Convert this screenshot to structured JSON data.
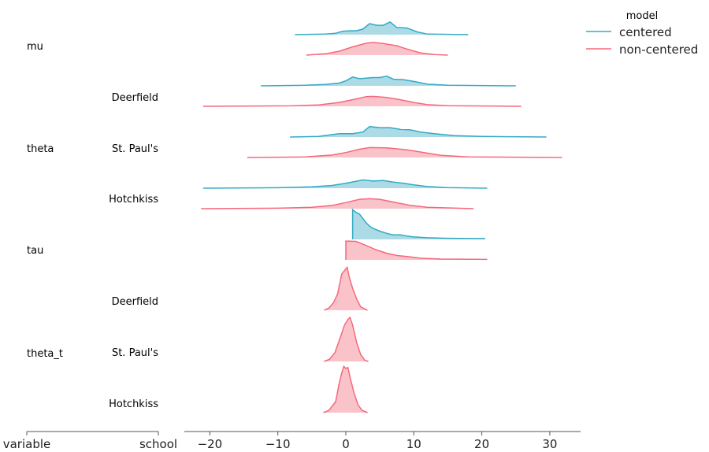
{
  "chart_data": {
    "type": "ridge",
    "xlim": [
      -24,
      34.5
    ],
    "xticks": [
      -20,
      -10,
      0,
      10,
      20,
      30
    ],
    "xtick_labels": [
      "−20",
      "−10",
      "0",
      "10",
      "20",
      "30"
    ],
    "left_axis_labels": {
      "variable": "variable",
      "school": "school"
    },
    "legend": {
      "title": "model",
      "placement": "top-right",
      "entries": [
        "centered",
        "non-centered"
      ]
    },
    "colors": {
      "centered": "#33aac4",
      "centered_fill": "#acdbe6",
      "non-centered": "#f6687c",
      "non-centered_fill": "#fac3ca"
    },
    "rows": [
      {
        "variable": "mu",
        "school": "",
        "curves": [
          {
            "model": "centered",
            "points": [
              [
                -7.5,
                0
              ],
              [
                -3,
                0.005
              ],
              [
                -1.5,
                0.012
              ],
              [
                -0.5,
                0.03
              ],
              [
                0.5,
                0.035
              ],
              [
                1.5,
                0.035
              ],
              [
                2.5,
                0.05
              ],
              [
                3.5,
                0.1
              ],
              [
                4.5,
                0.085
              ],
              [
                5.5,
                0.085
              ],
              [
                6.5,
                0.115
              ],
              [
                7.5,
                0.065
              ],
              [
                9,
                0.06
              ],
              [
                10.5,
                0.025
              ],
              [
                12,
                0.005
              ],
              [
                18,
                0
              ]
            ]
          },
          {
            "model": "non-centered",
            "points": [
              [
                -5.8,
                0
              ],
              [
                -3,
                0.012
              ],
              [
                -1,
                0.035
              ],
              [
                1,
                0.075
              ],
              [
                3,
                0.108
              ],
              [
                4,
                0.115
              ],
              [
                5.5,
                0.105
              ],
              [
                7.5,
                0.085
              ],
              [
                9,
                0.055
              ],
              [
                11,
                0.02
              ],
              [
                13,
                0.006
              ],
              [
                15,
                0
              ]
            ]
          }
        ]
      },
      {
        "variable": "theta",
        "school": "Deerfield",
        "curves": [
          {
            "model": "centered",
            "points": [
              [
                -12.5,
                0
              ],
              [
                -6,
                0.005
              ],
              [
                -3,
                0.012
              ],
              [
                -1,
                0.025
              ],
              [
                0,
                0.045
              ],
              [
                1,
                0.08
              ],
              [
                2,
                0.065
              ],
              [
                3,
                0.07
              ],
              [
                4,
                0.075
              ],
              [
                5,
                0.075
              ],
              [
                6,
                0.088
              ],
              [
                7,
                0.06
              ],
              [
                8.5,
                0.055
              ],
              [
                10,
                0.04
              ],
              [
                12,
                0.015
              ],
              [
                15,
                0.006
              ],
              [
                25,
                0
              ]
            ]
          },
          {
            "model": "non-centered",
            "points": [
              [
                -21,
                0
              ],
              [
                -8,
                0.004
              ],
              [
                -4,
                0.012
              ],
              [
                -1,
                0.035
              ],
              [
                1,
                0.06
              ],
              [
                3,
                0.088
              ],
              [
                4,
                0.09
              ],
              [
                6,
                0.08
              ],
              [
                8,
                0.06
              ],
              [
                10,
                0.035
              ],
              [
                12,
                0.015
              ],
              [
                15,
                0.005
              ],
              [
                25.8,
                0
              ]
            ]
          }
        ]
      },
      {
        "variable": "theta",
        "school": "St. Paul's",
        "curves": [
          {
            "model": "centered",
            "points": [
              [
                -8.2,
                0
              ],
              [
                -4,
                0.006
              ],
              [
                -1,
                0.03
              ],
              [
                1,
                0.03
              ],
              [
                2.5,
                0.045
              ],
              [
                3.5,
                0.095
              ],
              [
                5,
                0.085
              ],
              [
                6.5,
                0.085
              ],
              [
                8,
                0.07
              ],
              [
                9.5,
                0.065
              ],
              [
                11,
                0.045
              ],
              [
                13,
                0.03
              ],
              [
                16,
                0.012
              ],
              [
                20,
                0.005
              ],
              [
                29.5,
                0
              ]
            ]
          },
          {
            "model": "non-centered",
            "points": [
              [
                -14.5,
                0
              ],
              [
                -6,
                0.005
              ],
              [
                -2,
                0.022
              ],
              [
                0,
                0.045
              ],
              [
                2,
                0.075
              ],
              [
                3.5,
                0.09
              ],
              [
                6,
                0.088
              ],
              [
                9,
                0.07
              ],
              [
                11.5,
                0.045
              ],
              [
                14,
                0.02
              ],
              [
                18,
                0.006
              ],
              [
                31.8,
                0
              ]
            ]
          }
        ]
      },
      {
        "variable": "theta",
        "school": "Hotchkiss",
        "curves": [
          {
            "model": "centered",
            "points": [
              [
                -21,
                0
              ],
              [
                -10,
                0.004
              ],
              [
                -5,
                0.012
              ],
              [
                -2,
                0.025
              ],
              [
                0,
                0.045
              ],
              [
                2.5,
                0.075
              ],
              [
                4,
                0.065
              ],
              [
                5.5,
                0.07
              ],
              [
                7,
                0.055
              ],
              [
                8.5,
                0.045
              ],
              [
                10,
                0.03
              ],
              [
                12,
                0.015
              ],
              [
                15,
                0.005
              ],
              [
                20.8,
                0
              ]
            ]
          },
          {
            "model": "non-centered",
            "points": [
              [
                -21.3,
                0
              ],
              [
                -10,
                0.004
              ],
              [
                -5,
                0.013
              ],
              [
                -2,
                0.03
              ],
              [
                0,
                0.055
              ],
              [
                2,
                0.085
              ],
              [
                3.5,
                0.09
              ],
              [
                5,
                0.085
              ],
              [
                7,
                0.06
              ],
              [
                9.5,
                0.03
              ],
              [
                12,
                0.012
              ],
              [
                18.8,
                0
              ]
            ]
          }
        ]
      },
      {
        "variable": "tau",
        "school": "",
        "curves": [
          {
            "model": "centered",
            "points": [
              [
                1,
                0
              ],
              [
                1,
                0.27
              ],
              [
                1.5,
                0.245
              ],
              [
                2,
                0.23
              ],
              [
                2.5,
                0.19
              ],
              [
                3,
                0.15
              ],
              [
                3.5,
                0.12
              ],
              [
                4,
                0.1
              ],
              [
                5,
                0.075
              ],
              [
                6,
                0.055
              ],
              [
                7,
                0.04
              ],
              [
                8,
                0.042
              ],
              [
                9,
                0.03
              ],
              [
                10,
                0.022
              ],
              [
                12,
                0.015
              ],
              [
                15,
                0.01
              ],
              [
                20.5,
                0.007
              ]
            ]
          },
          {
            "model": "non-centered",
            "points": [
              [
                0,
                0
              ],
              [
                0,
                0.17
              ],
              [
                1.5,
                0.168
              ],
              [
                3,
                0.13
              ],
              [
                4.5,
                0.09
              ],
              [
                6,
                0.06
              ],
              [
                7.5,
                0.04
              ],
              [
                9,
                0.03
              ],
              [
                11,
                0.015
              ],
              [
                14,
                0.007
              ],
              [
                20.8,
                0.004
              ]
            ]
          }
        ]
      },
      {
        "variable": "theta_t",
        "school": "Deerfield",
        "curves": [
          {
            "model": "non-centered",
            "points": [
              [
                -3.2,
                0
              ],
              [
                -2.5,
                0.02
              ],
              [
                -1.8,
                0.07
              ],
              [
                -1.2,
                0.15
              ],
              [
                -0.6,
                0.33
              ],
              [
                -0.2,
                0.36
              ],
              [
                0.2,
                0.39
              ],
              [
                0.5,
                0.3
              ],
              [
                1,
                0.2
              ],
              [
                1.6,
                0.1
              ],
              [
                2.2,
                0.03
              ],
              [
                3.2,
                0
              ]
            ]
          }
        ]
      },
      {
        "variable": "theta_t",
        "school": "St. Paul's",
        "curves": [
          {
            "model": "non-centered",
            "points": [
              [
                -3.2,
                0
              ],
              [
                -2.4,
                0.02
              ],
              [
                -1.6,
                0.08
              ],
              [
                -0.8,
                0.22
              ],
              [
                -0.2,
                0.33
              ],
              [
                0.3,
                0.38
              ],
              [
                0.6,
                0.4
              ],
              [
                1,
                0.33
              ],
              [
                1.6,
                0.17
              ],
              [
                2.2,
                0.06
              ],
              [
                2.8,
                0.01
              ],
              [
                3.3,
                0
              ]
            ]
          }
        ]
      },
      {
        "variable": "theta_t",
        "school": "Hotchkiss",
        "curves": [
          {
            "model": "non-centered",
            "points": [
              [
                -3.3,
                0
              ],
              [
                -2.5,
                0.02
              ],
              [
                -1.5,
                0.1
              ],
              [
                -1,
                0.26
              ],
              [
                -0.6,
                0.36
              ],
              [
                -0.3,
                0.42
              ],
              [
                0,
                0.4
              ],
              [
                0.3,
                0.41
              ],
              [
                0.7,
                0.3
              ],
              [
                1.2,
                0.18
              ],
              [
                1.8,
                0.07
              ],
              [
                2.4,
                0.02
              ],
              [
                3.2,
                0
              ]
            ]
          }
        ]
      }
    ]
  }
}
